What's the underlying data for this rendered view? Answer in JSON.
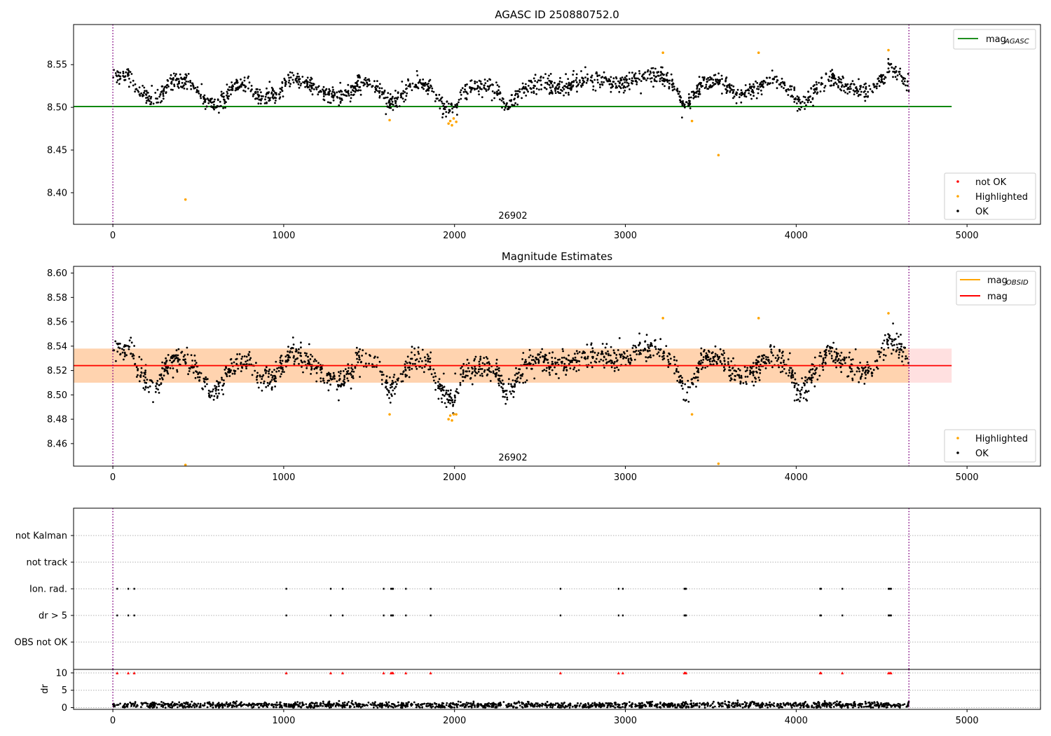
{
  "chart_data": [
    {
      "type": "scatter",
      "title": "AGASC ID 250880752.0",
      "xlim": [
        -230,
        5430
      ],
      "ylim": [
        8.363,
        8.597
      ],
      "xticks": [
        0,
        1000,
        2000,
        3000,
        4000,
        5000
      ],
      "yticks": [
        8.4,
        8.45,
        8.5,
        8.55
      ],
      "ytick_labels": [
        "8.40",
        "8.45",
        "8.50",
        "8.55"
      ],
      "annotation": {
        "text": "26902",
        "x": 2330,
        "y": 8.3725
      },
      "vlines": [
        0,
        4660
      ],
      "mag_agasc": 8.501,
      "mag_agasc_xrange": [
        -230,
        4910
      ],
      "legend_lines": [
        {
          "label": "mag",
          "sub": "AGASC",
          "color": "#008000"
        }
      ],
      "legend_markers": [
        {
          "label": "not OK",
          "color": "#ff0000"
        },
        {
          "label": "Highlighted",
          "color": "#ffa500"
        },
        {
          "label": "OK",
          "color": "#000000"
        }
      ],
      "series": [
        {
          "name": "OK",
          "color": "#000000",
          "trend": [
            [
              0,
              8.535
            ],
            [
              100,
              8.538
            ],
            [
              150,
              8.52
            ],
            [
              250,
              8.505
            ],
            [
              330,
              8.528
            ],
            [
              420,
              8.53
            ],
            [
              500,
              8.52
            ],
            [
              560,
              8.503
            ],
            [
              620,
              8.505
            ],
            [
              700,
              8.525
            ],
            [
              800,
              8.528
            ],
            [
              850,
              8.512
            ],
            [
              950,
              8.515
            ],
            [
              1050,
              8.535
            ],
            [
              1150,
              8.528
            ],
            [
              1250,
              8.515
            ],
            [
              1350,
              8.513
            ],
            [
              1450,
              8.53
            ],
            [
              1550,
              8.525
            ],
            [
              1620,
              8.505
            ],
            [
              1680,
              8.512
            ],
            [
              1750,
              8.53
            ],
            [
              1850,
              8.526
            ],
            [
              1920,
              8.505
            ],
            [
              1990,
              8.495
            ],
            [
              2050,
              8.518
            ],
            [
              2150,
              8.525
            ],
            [
              2250,
              8.52
            ],
            [
              2300,
              8.5
            ],
            [
              2400,
              8.52
            ],
            [
              2500,
              8.53
            ],
            [
              2600,
              8.522
            ],
            [
              2700,
              8.528
            ],
            [
              2800,
              8.533
            ],
            [
              2900,
              8.53
            ],
            [
              3000,
              8.528
            ],
            [
              3100,
              8.538
            ],
            [
              3200,
              8.538
            ],
            [
              3300,
              8.522
            ],
            [
              3350,
              8.5
            ],
            [
              3450,
              8.528
            ],
            [
              3550,
              8.532
            ],
            [
              3650,
              8.515
            ],
            [
              3750,
              8.52
            ],
            [
              3850,
              8.532
            ],
            [
              3950,
              8.525
            ],
            [
              4020,
              8.5
            ],
            [
              4100,
              8.518
            ],
            [
              4200,
              8.538
            ],
            [
              4300,
              8.522
            ],
            [
              4450,
              8.52
            ],
            [
              4550,
              8.548
            ],
            [
              4660,
              8.528
            ]
          ],
          "spread": 0.009,
          "count": 1800,
          "xrange": [
            0,
            4660
          ]
        },
        {
          "name": "Highlighted",
          "color": "#ffa500",
          "points": [
            [
              425,
              8.392
            ],
            [
              1620,
              8.485
            ],
            [
              1965,
              8.481
            ],
            [
              1975,
              8.484
            ],
            [
              1985,
              8.479
            ],
            [
              1995,
              8.487
            ],
            [
              2010,
              8.483
            ],
            [
              3220,
              8.564
            ],
            [
              3390,
              8.484
            ],
            [
              3545,
              8.444
            ],
            [
              3780,
              8.564
            ],
            [
              4540,
              8.567
            ]
          ]
        }
      ]
    },
    {
      "type": "scatter",
      "title": "Magnitude Estimates",
      "xlim": [
        -230,
        5430
      ],
      "ylim": [
        8.4415,
        8.6055
      ],
      "xticks": [
        0,
        1000,
        2000,
        3000,
        4000,
        5000
      ],
      "yticks": [
        8.46,
        8.48,
        8.5,
        8.52,
        8.54,
        8.56,
        8.58,
        8.6
      ],
      "ytick_labels": [
        "8.46",
        "8.48",
        "8.50",
        "8.52",
        "8.54",
        "8.56",
        "8.58",
        "8.60"
      ],
      "annotation": {
        "text": "26902",
        "x": 2330,
        "y": 8.4475
      },
      "vlines": [
        0,
        4660
      ],
      "mag": 8.524,
      "mag_band": [
        8.51,
        8.538
      ],
      "mag_xrange": [
        -230,
        4910
      ],
      "obsid_band": {
        "value": 8.524,
        "range": [
          8.51,
          8.538
        ],
        "xrange": [
          -230,
          4660
        ]
      },
      "legend_lines": [
        {
          "label": "mag",
          "sub": "OBSID",
          "color": "#ffa500"
        },
        {
          "label": "mag",
          "sub": "",
          "color": "#ff0000"
        }
      ],
      "legend_markers": [
        {
          "label": "Highlighted",
          "color": "#ffa500"
        },
        {
          "label": "OK",
          "color": "#000000"
        }
      ],
      "series": [
        {
          "name": "OK",
          "color": "#000000",
          "trend": [
            [
              0,
              8.535
            ],
            [
              100,
              8.538
            ],
            [
              150,
              8.52
            ],
            [
              250,
              8.505
            ],
            [
              330,
              8.528
            ],
            [
              420,
              8.53
            ],
            [
              500,
              8.52
            ],
            [
              560,
              8.5
            ],
            [
              620,
              8.503
            ],
            [
              700,
              8.525
            ],
            [
              800,
              8.528
            ],
            [
              850,
              8.512
            ],
            [
              950,
              8.515
            ],
            [
              1050,
              8.535
            ],
            [
              1150,
              8.528
            ],
            [
              1250,
              8.515
            ],
            [
              1350,
              8.51
            ],
            [
              1450,
              8.53
            ],
            [
              1550,
              8.523
            ],
            [
              1620,
              8.505
            ],
            [
              1680,
              8.512
            ],
            [
              1750,
              8.53
            ],
            [
              1850,
              8.526
            ],
            [
              1920,
              8.505
            ],
            [
              1990,
              8.493
            ],
            [
              2050,
              8.518
            ],
            [
              2150,
              8.525
            ],
            [
              2250,
              8.52
            ],
            [
              2300,
              8.5
            ],
            [
              2400,
              8.52
            ],
            [
              2500,
              8.53
            ],
            [
              2600,
              8.522
            ],
            [
              2700,
              8.528
            ],
            [
              2800,
              8.533
            ],
            [
              2900,
              8.53
            ],
            [
              3000,
              8.528
            ],
            [
              3100,
              8.538
            ],
            [
              3200,
              8.538
            ],
            [
              3300,
              8.522
            ],
            [
              3350,
              8.5
            ],
            [
              3450,
              8.528
            ],
            [
              3550,
              8.532
            ],
            [
              3650,
              8.515
            ],
            [
              3750,
              8.52
            ],
            [
              3850,
              8.532
            ],
            [
              3950,
              8.525
            ],
            [
              4020,
              8.5
            ],
            [
              4100,
              8.518
            ],
            [
              4200,
              8.538
            ],
            [
              4300,
              8.522
            ],
            [
              4450,
              8.52
            ],
            [
              4550,
              8.548
            ],
            [
              4660,
              8.528
            ]
          ],
          "spread": 0.009,
          "count": 1800,
          "xrange": [
            0,
            4660
          ]
        },
        {
          "name": "Highlighted",
          "color": "#ffa500",
          "points": [
            [
              425,
              8.4425
            ],
            [
              1620,
              8.484
            ],
            [
              1965,
              8.48
            ],
            [
              1975,
              8.483
            ],
            [
              1985,
              8.479
            ],
            [
              1995,
              8.484
            ],
            [
              2010,
              8.484
            ],
            [
              3220,
              8.563
            ],
            [
              3390,
              8.484
            ],
            [
              3545,
              8.4435
            ],
            [
              3780,
              8.563
            ],
            [
              4540,
              8.567
            ]
          ]
        }
      ]
    },
    {
      "type": "scatter",
      "title": "",
      "xlim": [
        -230,
        5430
      ],
      "category_labels": [
        "not Kalman",
        "not track",
        "Ion. rad.",
        "dr > 5",
        "OBS not OK"
      ],
      "vlines": [
        0,
        4660
      ],
      "flag_x": [
        25,
        90,
        125,
        1015,
        1275,
        1345,
        1585,
        1628,
        1635,
        1640,
        1715,
        1860,
        2620,
        2960,
        2985,
        3345,
        3350,
        3355,
        4140,
        4145,
        4270,
        4540,
        4548,
        4555
      ],
      "flagged_categories": [
        "Ion. rad.",
        "dr > 5"
      ]
    },
    {
      "type": "scatter",
      "title": "",
      "xlim": [
        -230,
        5430
      ],
      "ylim": [
        -0.5,
        11
      ],
      "xticks": [
        0,
        1000,
        2000,
        3000,
        4000,
        5000
      ],
      "yticks": [
        0,
        5,
        10
      ],
      "ytick_labels": [
        "0",
        "5",
        "10"
      ],
      "ylabel": "dr",
      "vlines": [
        0,
        4660
      ],
      "clip_value": 10,
      "series": [
        {
          "name": "dr",
          "color": "#000000",
          "mean": 0.7,
          "spread": 0.45,
          "count": 1500,
          "xrange": [
            0,
            4660
          ]
        },
        {
          "name": "dr > 5",
          "color": "#ff0000",
          "marker": "triangle",
          "x": [
            25,
            90,
            125,
            1015,
            1275,
            1345,
            1585,
            1628,
            1635,
            1640,
            1715,
            1860,
            2620,
            2960,
            2985,
            3345,
            3350,
            3355,
            4140,
            4145,
            4270,
            4540,
            4548,
            4555
          ],
          "value": 10
        }
      ]
    }
  ]
}
